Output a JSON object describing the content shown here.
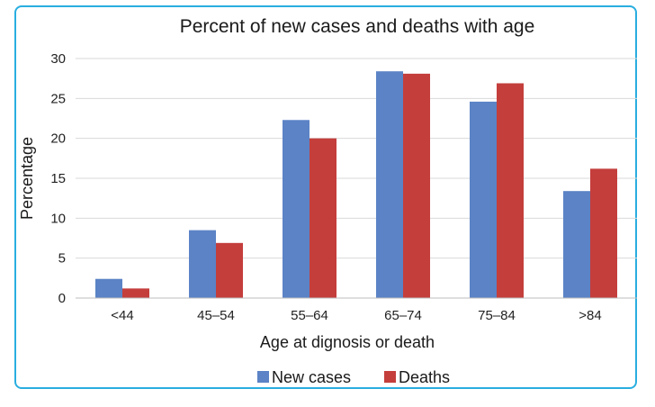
{
  "chart_data": {
    "type": "bar",
    "title": "Percent of new cases and deaths with age",
    "xlabel": "Age at dignosis or death",
    "ylabel": "Percentage",
    "categories": [
      "<44",
      "45–54",
      "55–64",
      "65–74",
      "75–84",
      ">84"
    ],
    "series": [
      {
        "name": "New cases",
        "color": "#5b83c6",
        "values": [
          2.4,
          8.5,
          22.3,
          28.4,
          24.6,
          13.4
        ]
      },
      {
        "name": "Deaths",
        "color": "#c43e3c",
        "values": [
          1.2,
          6.9,
          20.0,
          28.1,
          26.9,
          16.2
        ]
      }
    ],
    "ylim": [
      0,
      30
    ],
    "yticks": [
      0,
      5,
      10,
      15,
      20,
      25,
      30
    ],
    "grid": true,
    "legend": "bottom-center"
  }
}
